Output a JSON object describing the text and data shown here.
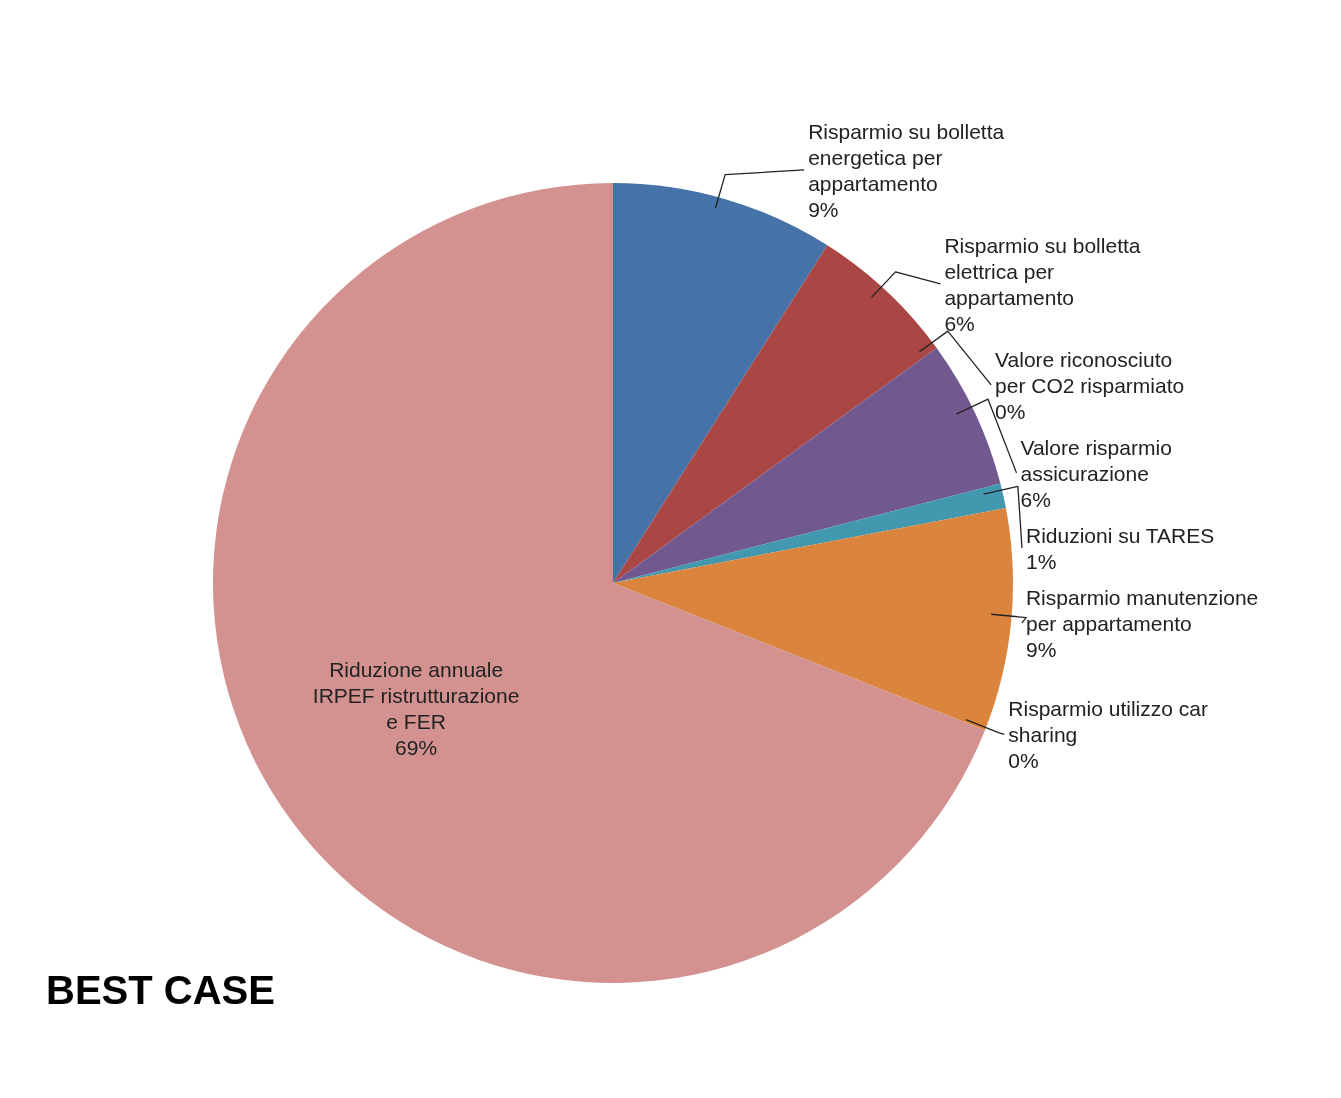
{
  "chart_data": {
    "type": "pie",
    "title": "BEST CASE",
    "categories": [
      "Risparmio su bolletta energetica per appartamento",
      "Risparmio su bolletta elettrica per appartamento",
      "Valore riconosciuto per CO2 risparmiato",
      "Valore risparmio assicurazione",
      "Riduzioni su TARES",
      "Risparmio manutenzione per appartamento",
      "Risparmio utilizzo car sharing",
      "Riduzione annuale IRPEF ristrutturazione e FER"
    ],
    "values": [
      9,
      6,
      0,
      6,
      1,
      9,
      0,
      69
    ],
    "value_labels": [
      "9%",
      "6%",
      "0%",
      "6%",
      "1%",
      "9%",
      "0%",
      "69%"
    ],
    "colors": [
      "#4572a7",
      "#aa4643",
      "#89a54e",
      "#71588f",
      "#4198af",
      "#db843d",
      "#93a9cf",
      "#d39290"
    ]
  }
}
